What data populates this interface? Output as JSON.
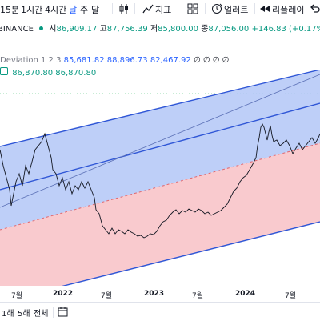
{
  "toolbar": {
    "intervals": [
      "15분",
      "1시간",
      "4시간",
      "날",
      "주",
      "달"
    ],
    "active_interval": "날",
    "indicators_label": "지표",
    "alert_label": "얼러트",
    "replay_label": "리플레이"
  },
  "symbol": {
    "exchange": "BINANCE",
    "open_label": "시",
    "open": "86,909.17",
    "high_label": "고",
    "high": "87,756.39",
    "low_label": "저",
    "low": "85,800.00",
    "close_label": "종",
    "close": "87,056.00",
    "change": "+146.83 (+0.17%)"
  },
  "indicator": {
    "name": "Deviation 1 2 3",
    "v1": "85,681.82",
    "v2": "88,896.73",
    "v3": "82,467.92",
    "placeholders": "∅ ∅ ∅ ∅"
  },
  "indicator2": {
    "v1": "86,870.80",
    "v2": "86,870.80"
  },
  "x_axis": {
    "ticks": [
      "7월",
      "2022",
      "7월",
      "2023",
      "7월",
      "2024",
      "7월"
    ],
    "bold": [
      false,
      true,
      false,
      true,
      false,
      true,
      false
    ]
  },
  "bottombar": {
    "ranges": [
      "1해",
      "5해",
      "전체"
    ]
  },
  "colors": {
    "upper_band": "#b3c7f7",
    "lower_band": "#f8c1c6",
    "channel_line": "#2f56d6",
    "center_line": "#3a6ad8",
    "price_line": "#131722",
    "dashed_mid": "#e0686f",
    "green_text": "#089981",
    "blue_text": "#2962ff",
    "red_text": "#e0686f",
    "accent": "#2962ff"
  }
}
